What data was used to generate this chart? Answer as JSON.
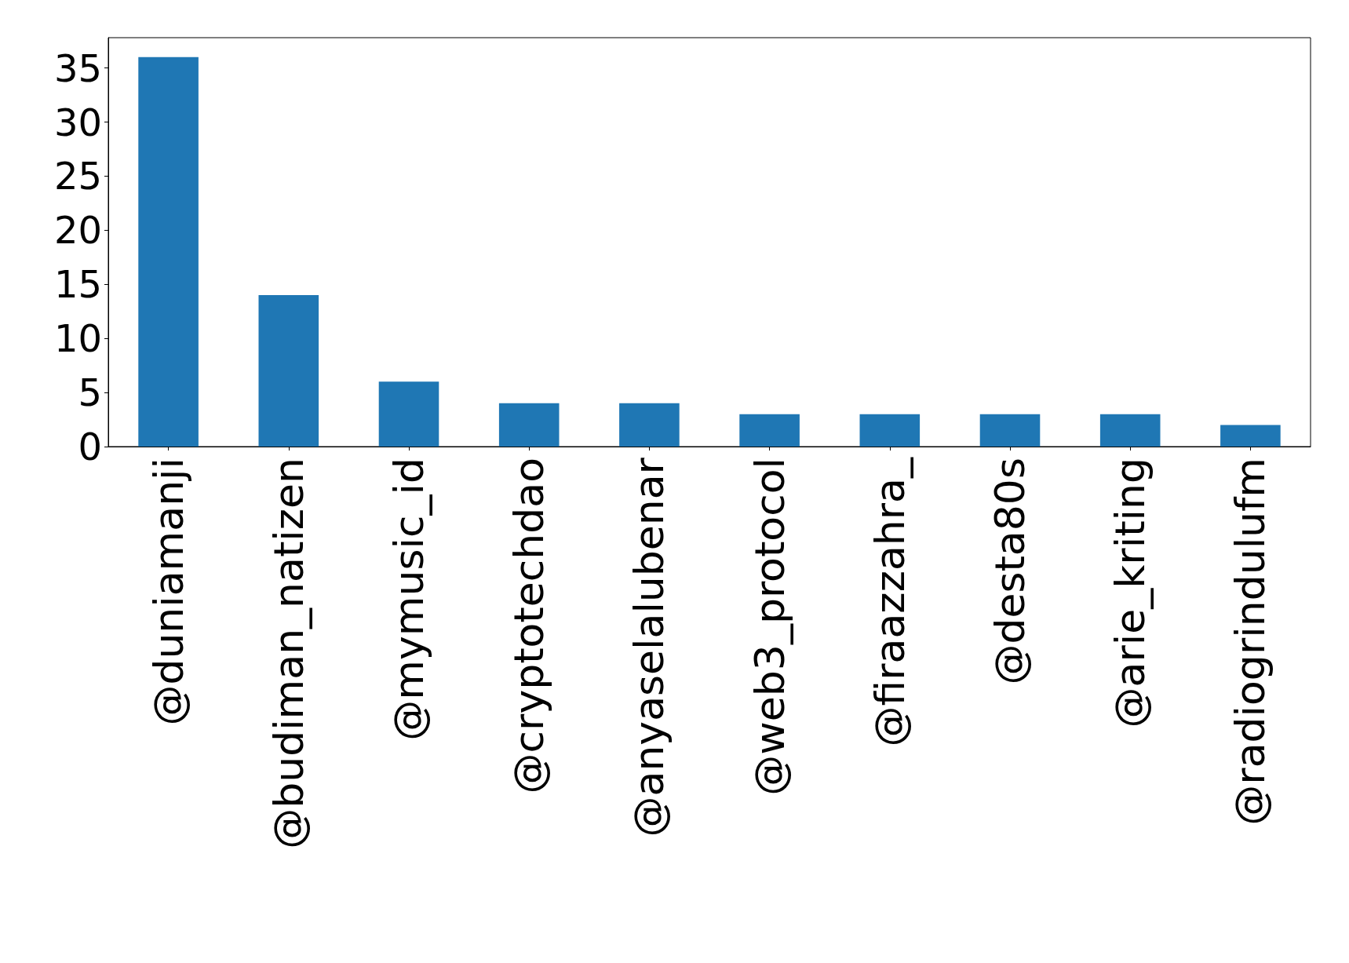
{
  "chart_data": {
    "type": "bar",
    "categories": [
      "@duniamanji",
      "@budiman_natizen",
      "@mymusic_id",
      "@cryptotechdao",
      "@anyaselalubenar",
      "@web3_protocol",
      "@firaazzahra_",
      "@desta80s",
      "@arie_kriting",
      "@radiogrindulufm"
    ],
    "values": [
      36,
      14,
      6,
      4,
      4,
      3,
      3,
      3,
      3,
      2
    ],
    "color": "#1f77b4",
    "ylim": [
      0,
      37.8
    ],
    "yticks": [
      0,
      5,
      10,
      15,
      20,
      25,
      30,
      35
    ],
    "grid": false
  }
}
